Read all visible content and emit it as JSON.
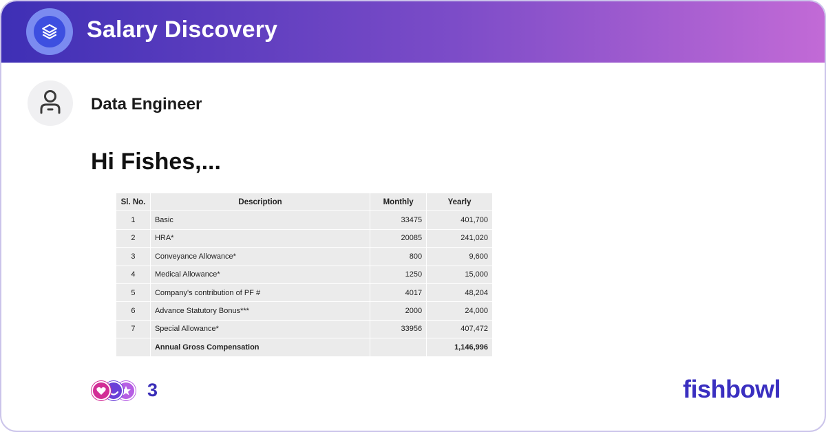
{
  "header": {
    "title": "Salary Discovery",
    "logo_icon": "layers-icon",
    "gradient": [
      "#3e2fb5",
      "#7c4cc8",
      "#c26ad6"
    ]
  },
  "author": {
    "avatar_icon": "user-icon",
    "role": "Data Engineer"
  },
  "post": {
    "title": "Hi Fishes,..."
  },
  "table": {
    "headers": [
      "Sl. No.",
      "Description",
      "Monthly",
      "Yearly"
    ],
    "rows": [
      {
        "sl": "1",
        "description": "Basic",
        "monthly": "33475",
        "yearly": "401,700"
      },
      {
        "sl": "2",
        "description": "HRA*",
        "monthly": "20085",
        "yearly": "241,020"
      },
      {
        "sl": "3",
        "description": "Conveyance Allowance*",
        "monthly": "800",
        "yearly": "9,600"
      },
      {
        "sl": "4",
        "description": "Medical Allowance*",
        "monthly": "1250",
        "yearly": "15,000"
      },
      {
        "sl": "5",
        "description": "Company's contribution of PF #",
        "monthly": "4017",
        "yearly": "48,204"
      },
      {
        "sl": "6",
        "description": "Advance Statutory Bonus***",
        "monthly": "2000",
        "yearly": "24,000"
      },
      {
        "sl": "7",
        "description": "Special Allowance*",
        "monthly": "33956",
        "yearly": "407,472"
      }
    ],
    "total": {
      "sl": "",
      "description": "Annual Gross Compensation",
      "monthly": "",
      "yearly": "1,146,996"
    }
  },
  "reactions": {
    "icons": [
      "heart-reaction-icon",
      "laugh-reaction-icon",
      "star-reaction-icon"
    ],
    "count": "3"
  },
  "brand": {
    "name": "fishbowl",
    "color": "#3a2fc0"
  }
}
